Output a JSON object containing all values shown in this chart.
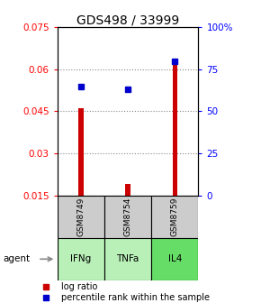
{
  "title": "GDS498 / 33999",
  "samples": [
    "IFNg",
    "TNFa",
    "IL4"
  ],
  "gsm_labels": [
    "GSM8749",
    "GSM8754",
    "GSM8759"
  ],
  "log_ratio": [
    0.046,
    0.019,
    0.062
  ],
  "percentile_rank": [
    65,
    63,
    80
  ],
  "left_ylim": [
    0.015,
    0.075
  ],
  "right_ylim": [
    0,
    100
  ],
  "left_yticks": [
    0.015,
    0.03,
    0.045,
    0.06,
    0.075
  ],
  "right_yticks": [
    0,
    25,
    50,
    75,
    100
  ],
  "right_yticklabels": [
    "0",
    "25",
    "50",
    "75",
    "100%"
  ],
  "bar_color": "#cc0000",
  "dot_color": "#0000cc",
  "grid_color": "#888888",
  "gsm_bg_color": "#cccccc",
  "agent_colors": [
    "#b8f0b8",
    "#b8f0b8",
    "#66dd66"
  ],
  "agent_label": "agent",
  "legend_bar_label": "log ratio",
  "legend_dot_label": "percentile rank within the sample",
  "title_fontsize": 10,
  "tick_fontsize": 7.5,
  "label_fontsize": 8,
  "bar_width": 0.1
}
